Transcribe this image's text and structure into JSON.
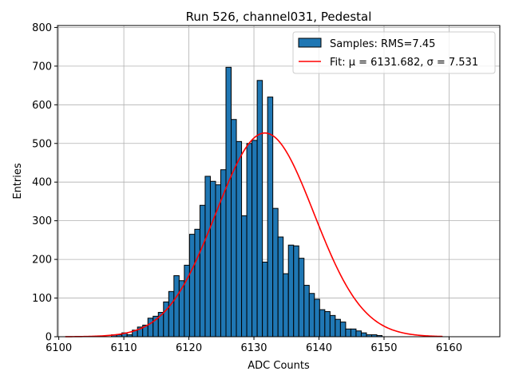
{
  "chart_data": {
    "type": "bar",
    "title": "Run 526, channel031, Pedestal",
    "xlabel": "ADC Counts",
    "ylabel": "Entries",
    "xlim": [
      6099.8,
      6167.8
    ],
    "ylim": [
      0,
      805
    ],
    "xticks": [
      6100,
      6110,
      6120,
      6130,
      6140,
      6150,
      6160
    ],
    "yticks": [
      0,
      100,
      200,
      300,
      400,
      500,
      600,
      700,
      800
    ],
    "grid": true,
    "legend_placement": "top-right",
    "colors": {
      "bars": "#1f77b4",
      "bar_edge": "#000000",
      "fit": "#ff0000",
      "grid": "#b0b0b0"
    },
    "series": [
      {
        "name": "Samples: RMS=7.45",
        "kind": "histogram",
        "bin_width": 0.8,
        "bins": [
          {
            "x": 6108.5,
            "y": 5
          },
          {
            "x": 6109.3,
            "y": 5
          },
          {
            "x": 6110.1,
            "y": 10
          },
          {
            "x": 6110.9,
            "y": 5
          },
          {
            "x": 6111.7,
            "y": 17
          },
          {
            "x": 6112.5,
            "y": 25
          },
          {
            "x": 6113.3,
            "y": 30
          },
          {
            "x": 6114.1,
            "y": 48
          },
          {
            "x": 6114.9,
            "y": 53
          },
          {
            "x": 6115.7,
            "y": 63
          },
          {
            "x": 6116.5,
            "y": 90
          },
          {
            "x": 6117.3,
            "y": 117
          },
          {
            "x": 6118.1,
            "y": 158
          },
          {
            "x": 6118.9,
            "y": 145
          },
          {
            "x": 6119.7,
            "y": 185
          },
          {
            "x": 6120.5,
            "y": 265
          },
          {
            "x": 6121.3,
            "y": 278
          },
          {
            "x": 6122.1,
            "y": 340
          },
          {
            "x": 6122.9,
            "y": 415
          },
          {
            "x": 6123.7,
            "y": 402
          },
          {
            "x": 6124.5,
            "y": 393
          },
          {
            "x": 6125.3,
            "y": 432
          },
          {
            "x": 6126.1,
            "y": 697
          },
          {
            "x": 6126.9,
            "y": 562
          },
          {
            "x": 6127.7,
            "y": 505
          },
          {
            "x": 6128.5,
            "y": 313
          },
          {
            "x": 6129.3,
            "y": 500
          },
          {
            "x": 6130.1,
            "y": 508
          },
          {
            "x": 6130.9,
            "y": 663
          },
          {
            "x": 6131.7,
            "y": 193
          },
          {
            "x": 6132.5,
            "y": 620
          },
          {
            "x": 6133.3,
            "y": 332
          },
          {
            "x": 6134.1,
            "y": 258
          },
          {
            "x": 6134.9,
            "y": 163
          },
          {
            "x": 6135.7,
            "y": 237
          },
          {
            "x": 6136.5,
            "y": 235
          },
          {
            "x": 6137.3,
            "y": 203
          },
          {
            "x": 6138.1,
            "y": 133
          },
          {
            "x": 6138.9,
            "y": 112
          },
          {
            "x": 6139.7,
            "y": 97
          },
          {
            "x": 6140.5,
            "y": 70
          },
          {
            "x": 6141.3,
            "y": 65
          },
          {
            "x": 6142.1,
            "y": 55
          },
          {
            "x": 6142.9,
            "y": 45
          },
          {
            "x": 6143.7,
            "y": 38
          },
          {
            "x": 6144.5,
            "y": 20
          },
          {
            "x": 6145.3,
            "y": 20
          },
          {
            "x": 6146.1,
            "y": 15
          },
          {
            "x": 6146.9,
            "y": 10
          },
          {
            "x": 6147.7,
            "y": 5
          },
          {
            "x": 6148.5,
            "y": 5
          },
          {
            "x": 6149.3,
            "y": 3
          }
        ]
      },
      {
        "name": "Fit: μ = 6131.682, σ = 7.531",
        "kind": "gaussian",
        "mu": 6131.682,
        "sigma": 7.531,
        "amplitude": 527,
        "x_range": [
          6101,
          6159
        ]
      }
    ]
  }
}
